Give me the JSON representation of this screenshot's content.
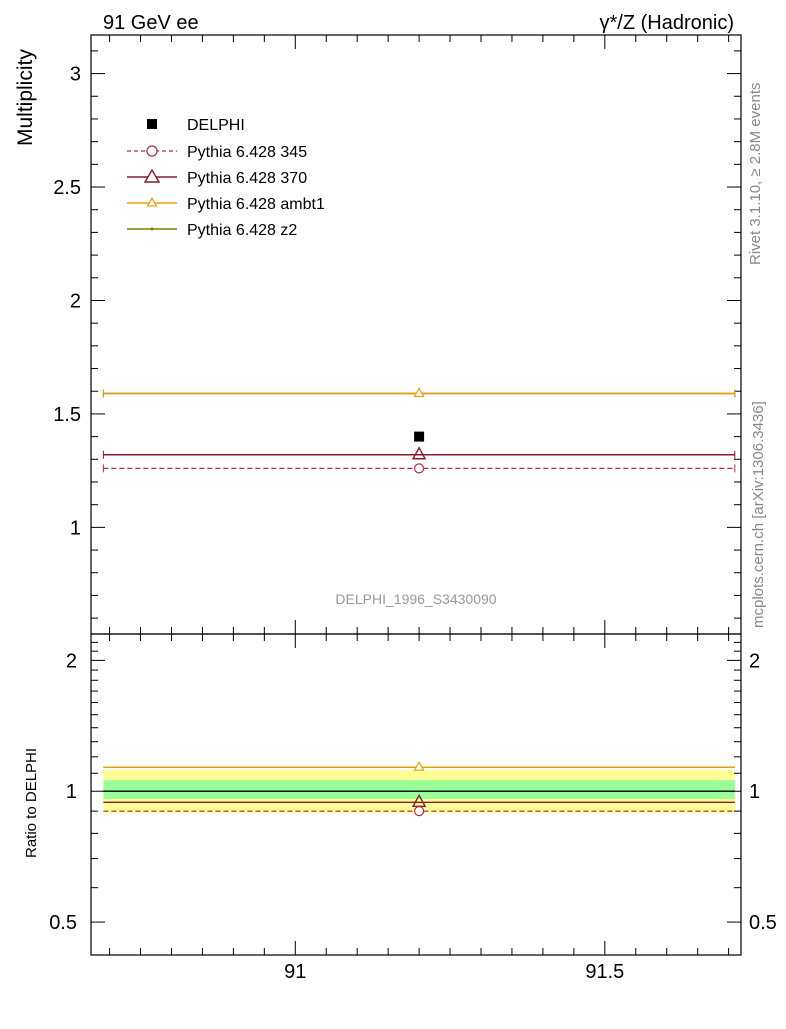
{
  "header": {
    "left": "91 GeV ee",
    "right": "γ*/Z (Hadronic)"
  },
  "side_text": {
    "rivet": "Rivet 3.1.10, ≥ 2.8M events",
    "mcplots": "mcplots.cern.ch [arXiv:1306.3436]"
  },
  "watermark": "DELPHI_1996_S3430090",
  "colors": {
    "data": "#000000",
    "p345": "#b0304a",
    "p370": "#8b1a2a",
    "ambt1": "#e8a010",
    "z2": "#808000",
    "band_yellow": "#ffff99",
    "band_green": "#99ff99"
  },
  "chart_data": [
    {
      "type": "line",
      "ylabel": "Multiplicity",
      "xlim": [
        90.67,
        91.72
      ],
      "ylim": [
        0.53,
        3.17
      ],
      "y_ticks": [
        1,
        1.5,
        2,
        2.5,
        3
      ],
      "y_tick_labels": [
        "1",
        "1.5",
        "2",
        "2.5",
        "3"
      ],
      "x_ticks": [
        91,
        91.5
      ],
      "x_tick_labels": [
        "91",
        "91.5"
      ],
      "x_range": [
        90.69,
        91.71
      ],
      "x_point": 91.2,
      "series": [
        {
          "name": "DELPHI",
          "marker": "square",
          "y": 1.4
        },
        {
          "name": "Pythia 6.428 345",
          "marker": "open-circle",
          "linestyle": "dashed",
          "y": 1.26
        },
        {
          "name": "Pythia 6.428 370",
          "marker": "open-triangle",
          "linestyle": "solid",
          "y": 1.32
        },
        {
          "name": "Pythia 6.428 ambt1",
          "marker": "small-triangle",
          "linestyle": "solid",
          "y": 1.59
        },
        {
          "name": "Pythia 6.428 z2",
          "marker": "dot",
          "linestyle": "solid",
          "y": 1.59
        }
      ]
    },
    {
      "type": "line",
      "ylabel": "Ratio to DELPHI",
      "xlim": [
        90.67,
        91.72
      ],
      "ylim": [
        0.42,
        2.3
      ],
      "y_scale": "log",
      "y_ticks": [
        0.5,
        1,
        2
      ],
      "y_tick_labels": [
        "0.5",
        "1",
        "2"
      ],
      "x_tick_labels": [
        "91",
        "91.5"
      ],
      "bands": {
        "yellow": [
          0.89,
          1.12
        ],
        "green": [
          0.96,
          1.06
        ]
      },
      "series": [
        {
          "name": "DELPHI",
          "y": 1.0
        },
        {
          "name": "Pythia 6.428 345",
          "y": 0.9
        },
        {
          "name": "Pythia 6.428 370",
          "y": 0.943
        },
        {
          "name": "Pythia 6.428 ambt1",
          "y": 1.136
        },
        {
          "name": "Pythia 6.428 z2",
          "y": 1.136
        }
      ]
    }
  ]
}
